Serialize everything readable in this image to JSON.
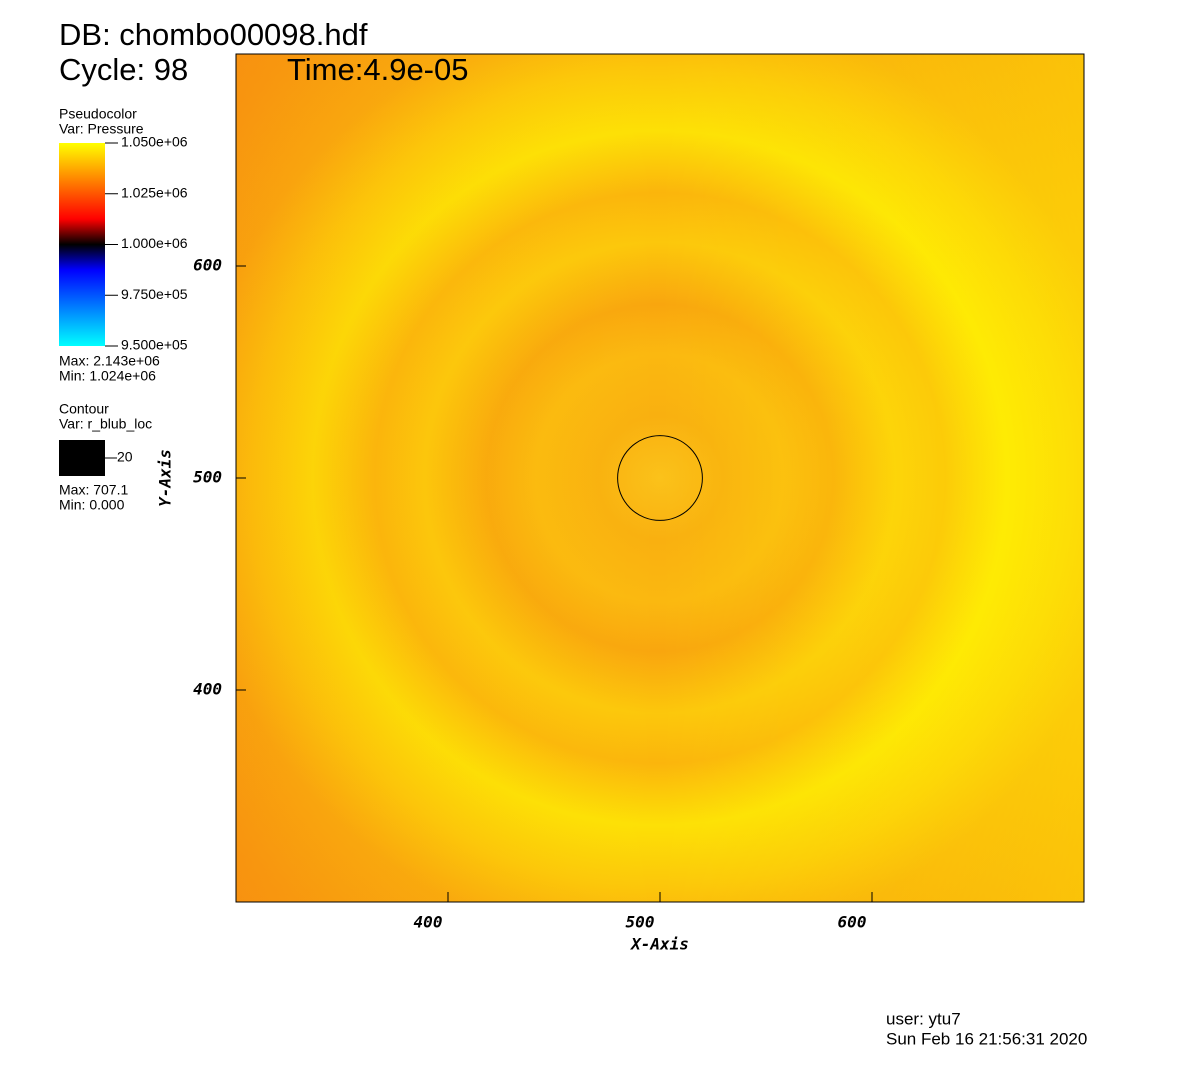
{
  "chart_data": {
    "type": "pseudocolor",
    "title": "DB: chombo00098.hdf",
    "cycle": "Cycle: 98",
    "time": "Time:4.9e-05",
    "x_label": "X-Axis",
    "y_label": "Y-Axis",
    "xlim": [
      300,
      700
    ],
    "ylim": [
      300,
      700
    ],
    "xticks": [
      400,
      500,
      600
    ],
    "yticks": [
      400,
      500,
      600
    ],
    "pseudocolor": {
      "plot": "Pseudocolor",
      "var": "Var: Pressure",
      "range": [
        950000,
        1050000
      ],
      "ticks": [
        {
          "value": 1050000,
          "label": "1.050e+06"
        },
        {
          "value": 1025000,
          "label": "1.025e+06"
        },
        {
          "value": 1000000,
          "label": "1.000e+06"
        },
        {
          "value": 975000,
          "label": "9.750e+05"
        },
        {
          "value": 950000,
          "label": "9.500e+05"
        }
      ],
      "colormap": [
        {
          "value": 950000,
          "color": "#00ffff"
        },
        {
          "value": 987500,
          "color": "#0000ff"
        },
        {
          "value": 1000000,
          "color": "#000000"
        },
        {
          "value": 1012500,
          "color": "#ff0000"
        },
        {
          "value": 1050000,
          "color": "#ffff00"
        }
      ],
      "max": "Max: 2.143e+06",
      "min": "Min:  1.024e+06"
    },
    "contour": {
      "plot": "Contour",
      "var": "Var: r_blub_loc",
      "levels": [
        20
      ],
      "center": [
        500,
        500
      ],
      "color": "#000000",
      "max": "Max: 707.1",
      "min": "Min: 0.000"
    },
    "user": "user: ytu7",
    "date": "Sun Feb 16 21:56:31 2020"
  }
}
